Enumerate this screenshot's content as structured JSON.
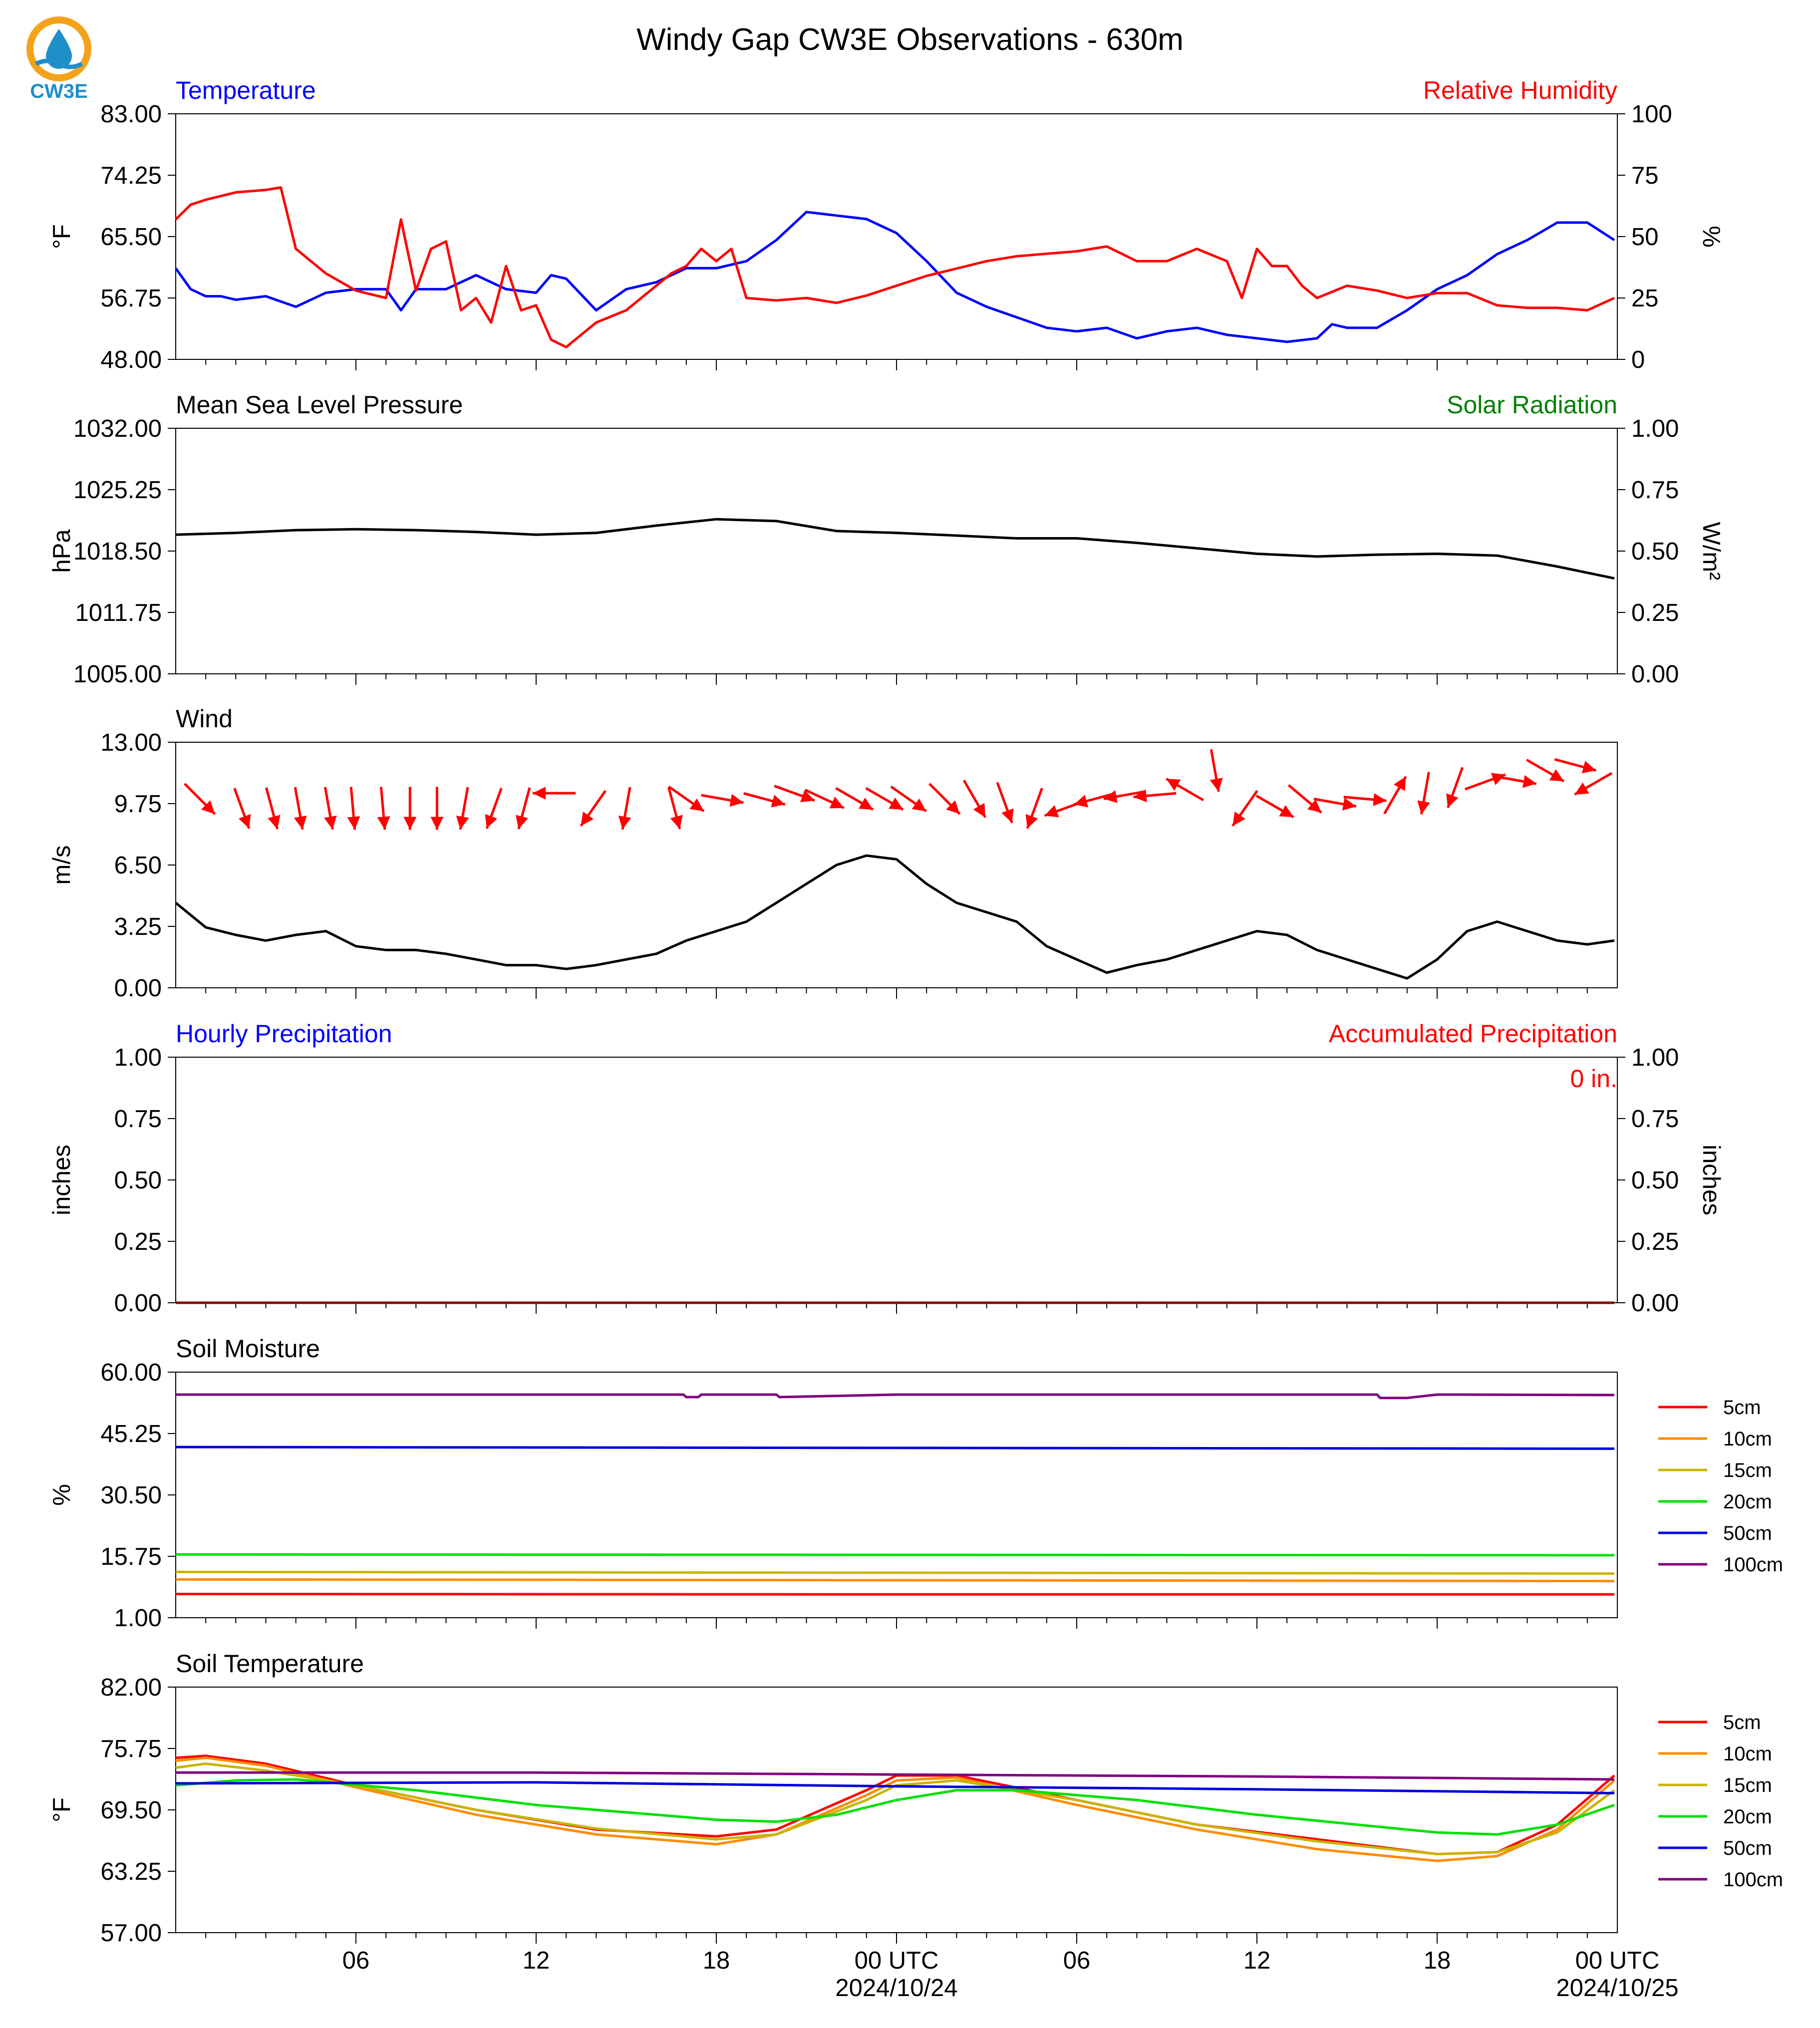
{
  "title": "Windy Gap CW3E Observations - 630m",
  "logo": {
    "text": "CW3E",
    "colors": {
      "ring": "#f5a21b",
      "drop": "#1f8fc7",
      "wave": "#1f8fc7"
    }
  },
  "x_axis": {
    "start_hour": 0,
    "end_hour": 48,
    "tick_labels": [
      "06",
      "12",
      "18",
      "00 UTC",
      "06",
      "12",
      "18",
      "00 UTC"
    ],
    "date_labels": [
      "2024/10/24",
      "2024/10/25"
    ]
  },
  "chart_data": [
    {
      "type": "line",
      "title_left": "Temperature",
      "title_left_color": "#0000ff",
      "title_right": "Relative Humidity",
      "title_right_color": "#ff0000",
      "ylabel": "°F",
      "ylabel_right": "%",
      "ylim": [
        48,
        83
      ],
      "yticks": [
        "83.00",
        "74.25",
        "65.50",
        "56.75",
        "48.00"
      ],
      "ylim_right": [
        0,
        100
      ],
      "yticks_right": [
        "100",
        "75",
        "50",
        "25",
        "0"
      ],
      "series": [
        {
          "name": "Temperature",
          "axis": "left",
          "color": "#0000ff",
          "x": [
            0,
            0.5,
            1,
            1.5,
            2,
            3,
            4,
            5,
            6,
            7,
            7.5,
            8,
            9,
            10,
            11,
            12,
            12.5,
            13,
            14,
            15,
            16,
            17,
            18,
            19,
            20,
            21,
            22,
            23,
            24,
            25,
            26,
            27,
            28,
            29,
            30,
            31,
            32,
            33,
            34,
            35,
            36,
            37,
            38,
            38.5,
            39,
            40,
            41,
            42,
            43,
            44,
            45,
            46,
            47,
            47.9
          ],
          "y": [
            61,
            58,
            57,
            57,
            56.5,
            57,
            55.5,
            57.5,
            58,
            58,
            55,
            58,
            58,
            60,
            58,
            57.5,
            60,
            59.5,
            55,
            58,
            59,
            61,
            61,
            62,
            65,
            69,
            68.5,
            68,
            66,
            62,
            57.5,
            55.5,
            54,
            52.5,
            52,
            52.5,
            51,
            52,
            52.5,
            51.5,
            51,
            50.5,
            51,
            53,
            52.5,
            52.5,
            55,
            58,
            60,
            63,
            65,
            67.5,
            67.5,
            65
          ]
        },
        {
          "name": "Relative Humidity",
          "axis": "right",
          "color": "#ff0000",
          "x": [
            0,
            0.5,
            1,
            2,
            3,
            3.5,
            4,
            5,
            6,
            7,
            7.5,
            8,
            8.5,
            9,
            9.5,
            10,
            10.5,
            11,
            11.5,
            12,
            12.5,
            13,
            14,
            15,
            16,
            16.5,
            17,
            17.5,
            18,
            18.5,
            19,
            20,
            21,
            22,
            23,
            24,
            25,
            26,
            27,
            28,
            29,
            30,
            31,
            32,
            33,
            34,
            35,
            35.5,
            36,
            36.5,
            37,
            37.5,
            38,
            39,
            40,
            41,
            42,
            43,
            44,
            45,
            46,
            47,
            47.9
          ],
          "y": [
            57,
            63,
            65,
            68,
            69,
            70,
            45,
            35,
            28,
            25,
            57,
            28,
            45,
            48,
            20,
            25,
            15,
            38,
            20,
            22,
            8,
            5,
            15,
            20,
            30,
            35,
            38,
            45,
            40,
            45,
            25,
            24,
            25,
            23,
            26,
            30,
            34,
            37,
            40,
            42,
            43,
            44,
            46,
            40,
            40,
            45,
            40,
            25,
            45,
            38,
            38,
            30,
            25,
            30,
            28,
            25,
            27,
            27,
            22,
            21,
            21,
            20,
            25
          ]
        }
      ]
    },
    {
      "type": "line",
      "title_left": "Mean Sea Level Pressure",
      "title_left_color": "#000000",
      "title_right": "Solar Radiation",
      "title_right_color": "#008000",
      "ylabel": "hPa",
      "ylabel_right": "W/m²",
      "ylim": [
        1005,
        1032
      ],
      "yticks": [
        "1032.00",
        "1025.25",
        "1018.50",
        "1011.75",
        "1005.00"
      ],
      "ylim_right": [
        0,
        1
      ],
      "yticks_right": [
        "1.00",
        "0.75",
        "0.50",
        "0.25",
        "0.00"
      ],
      "series": [
        {
          "name": "Mean Sea Level Pressure",
          "axis": "left",
          "color": "#000000",
          "x": [
            0,
            2,
            4,
            6,
            8,
            10,
            12,
            14,
            16,
            18,
            20,
            22,
            24,
            26,
            28,
            30,
            32,
            34,
            36,
            38,
            40,
            42,
            44,
            46,
            47.9
          ],
          "y": [
            1020.3,
            1020.5,
            1020.8,
            1020.9,
            1020.8,
            1020.6,
            1020.3,
            1020.5,
            1021.3,
            1022.0,
            1021.8,
            1020.7,
            1020.5,
            1020.2,
            1019.9,
            1019.9,
            1019.4,
            1018.8,
            1018.2,
            1017.9,
            1018.1,
            1018.2,
            1018.0,
            1016.8,
            1015.5
          ]
        }
      ]
    },
    {
      "type": "line",
      "title_left": "Wind",
      "title_left_color": "#000000",
      "ylabel": "m/s",
      "ylim": [
        0,
        13
      ],
      "yticks": [
        "13.00",
        "9.75",
        "6.50",
        "3.25",
        "0.00"
      ],
      "series": [
        {
          "name": "Wind Speed",
          "axis": "left",
          "color": "#000000",
          "x": [
            0,
            1,
            2,
            3,
            4,
            5,
            6,
            7,
            8,
            9,
            10,
            11,
            12,
            13,
            14,
            15,
            16,
            17,
            18,
            19,
            20,
            21,
            22,
            23,
            24,
            25,
            26,
            27,
            28,
            29,
            30,
            31,
            32,
            33,
            34,
            35,
            36,
            37,
            38,
            39,
            40,
            41,
            42,
            43,
            44,
            45,
            46,
            47,
            47.9
          ],
          "y": [
            4.5,
            3.2,
            2.8,
            2.5,
            2.8,
            3.0,
            2.2,
            2.0,
            2.0,
            1.8,
            1.5,
            1.2,
            1.2,
            1.0,
            1.2,
            1.5,
            1.8,
            2.5,
            3.0,
            3.5,
            4.5,
            5.5,
            6.5,
            7.0,
            6.8,
            5.5,
            4.5,
            4.0,
            3.5,
            2.2,
            1.5,
            0.8,
            1.2,
            1.5,
            2.0,
            2.5,
            3.0,
            2.8,
            2.0,
            1.5,
            1.0,
            0.5,
            1.5,
            3.0,
            3.5,
            3.0,
            2.5,
            2.3,
            2.5
          ]
        }
      ],
      "wind_arrows": {
        "color": "#ff0000",
        "x": [
          0.8,
          2.2,
          3.2,
          4.1,
          5.1,
          5.9,
          6.9,
          7.8,
          8.7,
          9.6,
          10.6,
          11.6,
          12.6,
          13.9,
          15.0,
          16.6,
          17.0,
          18.2,
          19.6,
          20.6,
          21.6,
          22.6,
          23.6,
          24.4,
          25.6,
          26.6,
          27.6,
          28.6,
          29.6,
          30.6,
          31.6,
          32.6,
          33.6,
          34.6,
          35.6,
          36.6,
          37.6,
          38.6,
          39.6,
          40.6,
          41.6,
          42.6,
          43.6,
          44.6,
          45.6,
          46.6,
          47.2
        ],
        "speed": [
          10.0,
          9.5,
          9.5,
          9.5,
          9.5,
          9.5,
          9.5,
          9.5,
          9.5,
          9.5,
          9.5,
          9.5,
          10.3,
          9.5,
          9.5,
          9.5,
          10.0,
          10.0,
          10.0,
          10.3,
          10.0,
          10.0,
          10.0,
          10.0,
          10.0,
          10.0,
          9.8,
          9.5,
          9.5,
          10.0,
          10.2,
          10.2,
          10.5,
          11.5,
          9.5,
          9.6,
          10.0,
          9.8,
          10.0,
          10.2,
          10.3,
          10.6,
          10.9,
          11.0,
          11.5,
          11.8,
          10.8
        ],
        "direction_deg": [
          315,
          340,
          345,
          350,
          350,
          355,
          355,
          0,
          0,
          10,
          20,
          15,
          90,
          35,
          10,
          345,
          305,
          280,
          285,
          290,
          295,
          300,
          300,
          305,
          315,
          330,
          340,
          20,
          70,
          75,
          80,
          85,
          120,
          350,
          35,
          300,
          310,
          280,
          275,
          210,
          10,
          20,
          250,
          280,
          300,
          285,
          60
        ]
      }
    },
    {
      "type": "line",
      "title_left": "Hourly Precipitation",
      "title_left_color": "#0000ff",
      "title_right": "Accumulated Precipitation",
      "title_right_color": "#ff0000",
      "annotation": "0 in.",
      "annotation_color": "#ff0000",
      "ylabel": "inches",
      "ylabel_right": "inches",
      "ylim": [
        0,
        1
      ],
      "yticks": [
        "1.00",
        "0.75",
        "0.50",
        "0.25",
        "0.00"
      ],
      "ylim_right": [
        0,
        1
      ],
      "yticks_right": [
        "1.00",
        "0.75",
        "0.50",
        "0.25",
        "0.00"
      ],
      "series": [
        {
          "name": "Hourly Precipitation",
          "axis": "left",
          "color": "#0000ff",
          "x": [
            0,
            47.9
          ],
          "y": [
            0,
            0
          ]
        },
        {
          "name": "Accumulated Precipitation",
          "axis": "right",
          "color": "#8b0000",
          "x": [
            0,
            47.9
          ],
          "y": [
            0,
            0
          ]
        }
      ]
    },
    {
      "type": "line",
      "title_left": "Soil Moisture",
      "title_left_color": "#000000",
      "ylabel": "%",
      "ylim": [
        1,
        60
      ],
      "yticks": [
        "60.00",
        "45.25",
        "30.50",
        "15.75",
        "1.00"
      ],
      "legend": [
        "5cm",
        "10cm",
        "15cm",
        "20cm",
        "50cm",
        "100cm"
      ],
      "series": [
        {
          "name": "5cm",
          "color": "#ff0000",
          "x": [
            0,
            24,
            47.9
          ],
          "y": [
            6.7,
            6.6,
            6.6
          ]
        },
        {
          "name": "10cm",
          "color": "#ff8c00",
          "x": [
            0,
            24,
            47.9
          ],
          "y": [
            10.2,
            10.0,
            9.8
          ]
        },
        {
          "name": "15cm",
          "color": "#c8b400",
          "x": [
            0,
            24,
            47.9
          ],
          "y": [
            12.0,
            11.8,
            11.6
          ]
        },
        {
          "name": "20cm",
          "color": "#00e000",
          "x": [
            0,
            24,
            47.9
          ],
          "y": [
            16.2,
            16.1,
            16.0
          ]
        },
        {
          "name": "50cm",
          "color": "#0000dd",
          "x": [
            0,
            24,
            47.9
          ],
          "y": [
            42.0,
            41.8,
            41.6
          ]
        },
        {
          "name": "100cm",
          "color": "#800080",
          "x": [
            0,
            16.9,
            17.0,
            17.4,
            17.5,
            17.8,
            19.0,
            20.0,
            20.1,
            24,
            40.0,
            40.1,
            41.0,
            42.0,
            42.5,
            47.9
          ],
          "y": [
            54.6,
            54.6,
            54.0,
            54.0,
            54.6,
            54.6,
            54.6,
            54.6,
            54.0,
            54.6,
            54.6,
            53.8,
            53.8,
            54.6,
            54.6,
            54.5
          ]
        }
      ]
    },
    {
      "type": "line",
      "title_left": "Soil Temperature",
      "title_left_color": "#000000",
      "ylabel": "°F",
      "ylim": [
        57,
        82
      ],
      "yticks": [
        "82.00",
        "75.75",
        "69.50",
        "63.25",
        "57.00"
      ],
      "legend": [
        "5cm",
        "10cm",
        "15cm",
        "20cm",
        "50cm",
        "100cm"
      ],
      "series": [
        {
          "name": "5cm",
          "color": "#ff0000",
          "x": [
            0,
            1,
            3,
            6,
            10,
            14,
            18,
            20,
            23,
            24,
            26,
            30,
            34,
            38,
            42,
            44,
            46,
            47.9
          ],
          "y": [
            74.8,
            75,
            74.2,
            72,
            69.5,
            67.5,
            66.8,
            67.5,
            71.5,
            73.0,
            73.0,
            70.5,
            68.0,
            66.5,
            65.0,
            65.2,
            68,
            73
          ]
        },
        {
          "name": "10cm",
          "color": "#ff8c00",
          "x": [
            0,
            1,
            3,
            6,
            10,
            14,
            18,
            20,
            23,
            24,
            26,
            30,
            34,
            38,
            42,
            44,
            46,
            47.9
          ],
          "y": [
            74.5,
            74.8,
            74.0,
            71.8,
            69.0,
            67.0,
            66.0,
            67.0,
            71.0,
            72.5,
            72.8,
            70.0,
            67.5,
            65.5,
            64.3,
            64.8,
            67.5,
            72.5
          ]
        },
        {
          "name": "15cm",
          "color": "#c8b400",
          "x": [
            0,
            1,
            3,
            6,
            10,
            14,
            18,
            20,
            23,
            24,
            26,
            30,
            34,
            38,
            42,
            44,
            46,
            47.9
          ],
          "y": [
            73.8,
            74.2,
            73.5,
            72.0,
            69.5,
            67.6,
            66.5,
            67.0,
            70.5,
            72.0,
            72.5,
            70.5,
            68.0,
            66.3,
            65.0,
            65.2,
            67.2,
            71.5
          ]
        },
        {
          "name": "20cm",
          "color": "#00e000",
          "x": [
            0,
            2,
            4,
            8,
            12,
            16,
            18,
            20,
            22,
            24,
            26,
            28,
            32,
            36,
            40,
            42,
            44,
            46,
            47.9
          ],
          "y": [
            72,
            72.5,
            72.6,
            71.5,
            70.0,
            69.0,
            68.5,
            68.3,
            69.0,
            70.5,
            71.5,
            71.5,
            70.5,
            69.0,
            67.8,
            67.2,
            67.0,
            68.0,
            70.0
          ]
        },
        {
          "name": "50cm",
          "color": "#0000dd",
          "x": [
            0,
            12,
            24,
            36,
            47.9
          ],
          "y": [
            72.2,
            72.3,
            71.9,
            71.6,
            71.2
          ]
        },
        {
          "name": "100cm",
          "color": "#800080",
          "x": [
            0,
            12,
            24,
            36,
            47.9
          ],
          "y": [
            73.3,
            73.3,
            73.1,
            72.9,
            72.6
          ]
        }
      ]
    }
  ]
}
